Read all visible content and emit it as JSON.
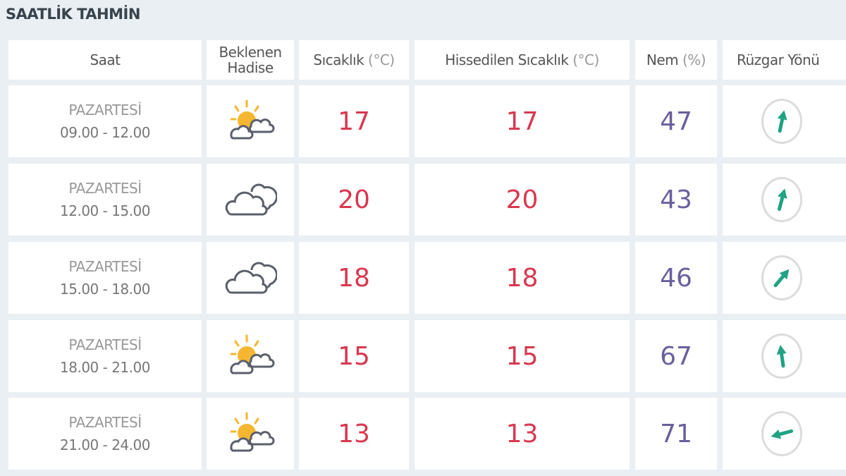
{
  "title": "SAATLİK TAHMİN",
  "headers": {
    "saat": "Saat",
    "hadise": "Beklenen Hadise",
    "sicaklik": "Sıcaklık",
    "sicaklik_unit": "(°C)",
    "hissedilen": "Hissedilen Sıcaklık",
    "hissedilen_unit": "(°C)",
    "nem": "Nem",
    "nem_unit": "(%)",
    "ruzgar": "Rüzgar Yönü"
  },
  "colors": {
    "temperature": "#d8384f",
    "humidity": "#6b5f9e",
    "wind_arrow": "#1fa383",
    "sun": "#f5b731"
  },
  "rows": [
    {
      "day": "PAZARTESİ",
      "time": "09.00 - 12.00",
      "icon": "partly-cloudy-icon",
      "temp": "17",
      "feels": "17",
      "humidity": "47",
      "wind_direction_deg": 12
    },
    {
      "day": "PAZARTESİ",
      "time": "12.00 - 15.00",
      "icon": "cloudy-icon",
      "temp": "20",
      "feels": "20",
      "humidity": "43",
      "wind_direction_deg": 15
    },
    {
      "day": "PAZARTESİ",
      "time": "15.00 - 18.00",
      "icon": "cloudy-icon",
      "temp": "18",
      "feels": "18",
      "humidity": "46",
      "wind_direction_deg": 40
    },
    {
      "day": "PAZARTESİ",
      "time": "18.00 - 21.00",
      "icon": "partly-cloudy-icon",
      "temp": "15",
      "feels": "15",
      "humidity": "67",
      "wind_direction_deg": -8
    },
    {
      "day": "PAZARTESİ",
      "time": "21.00 - 24.00",
      "icon": "partly-cloudy-icon",
      "temp": "13",
      "feels": "13",
      "humidity": "71",
      "wind_direction_deg": -105
    }
  ]
}
